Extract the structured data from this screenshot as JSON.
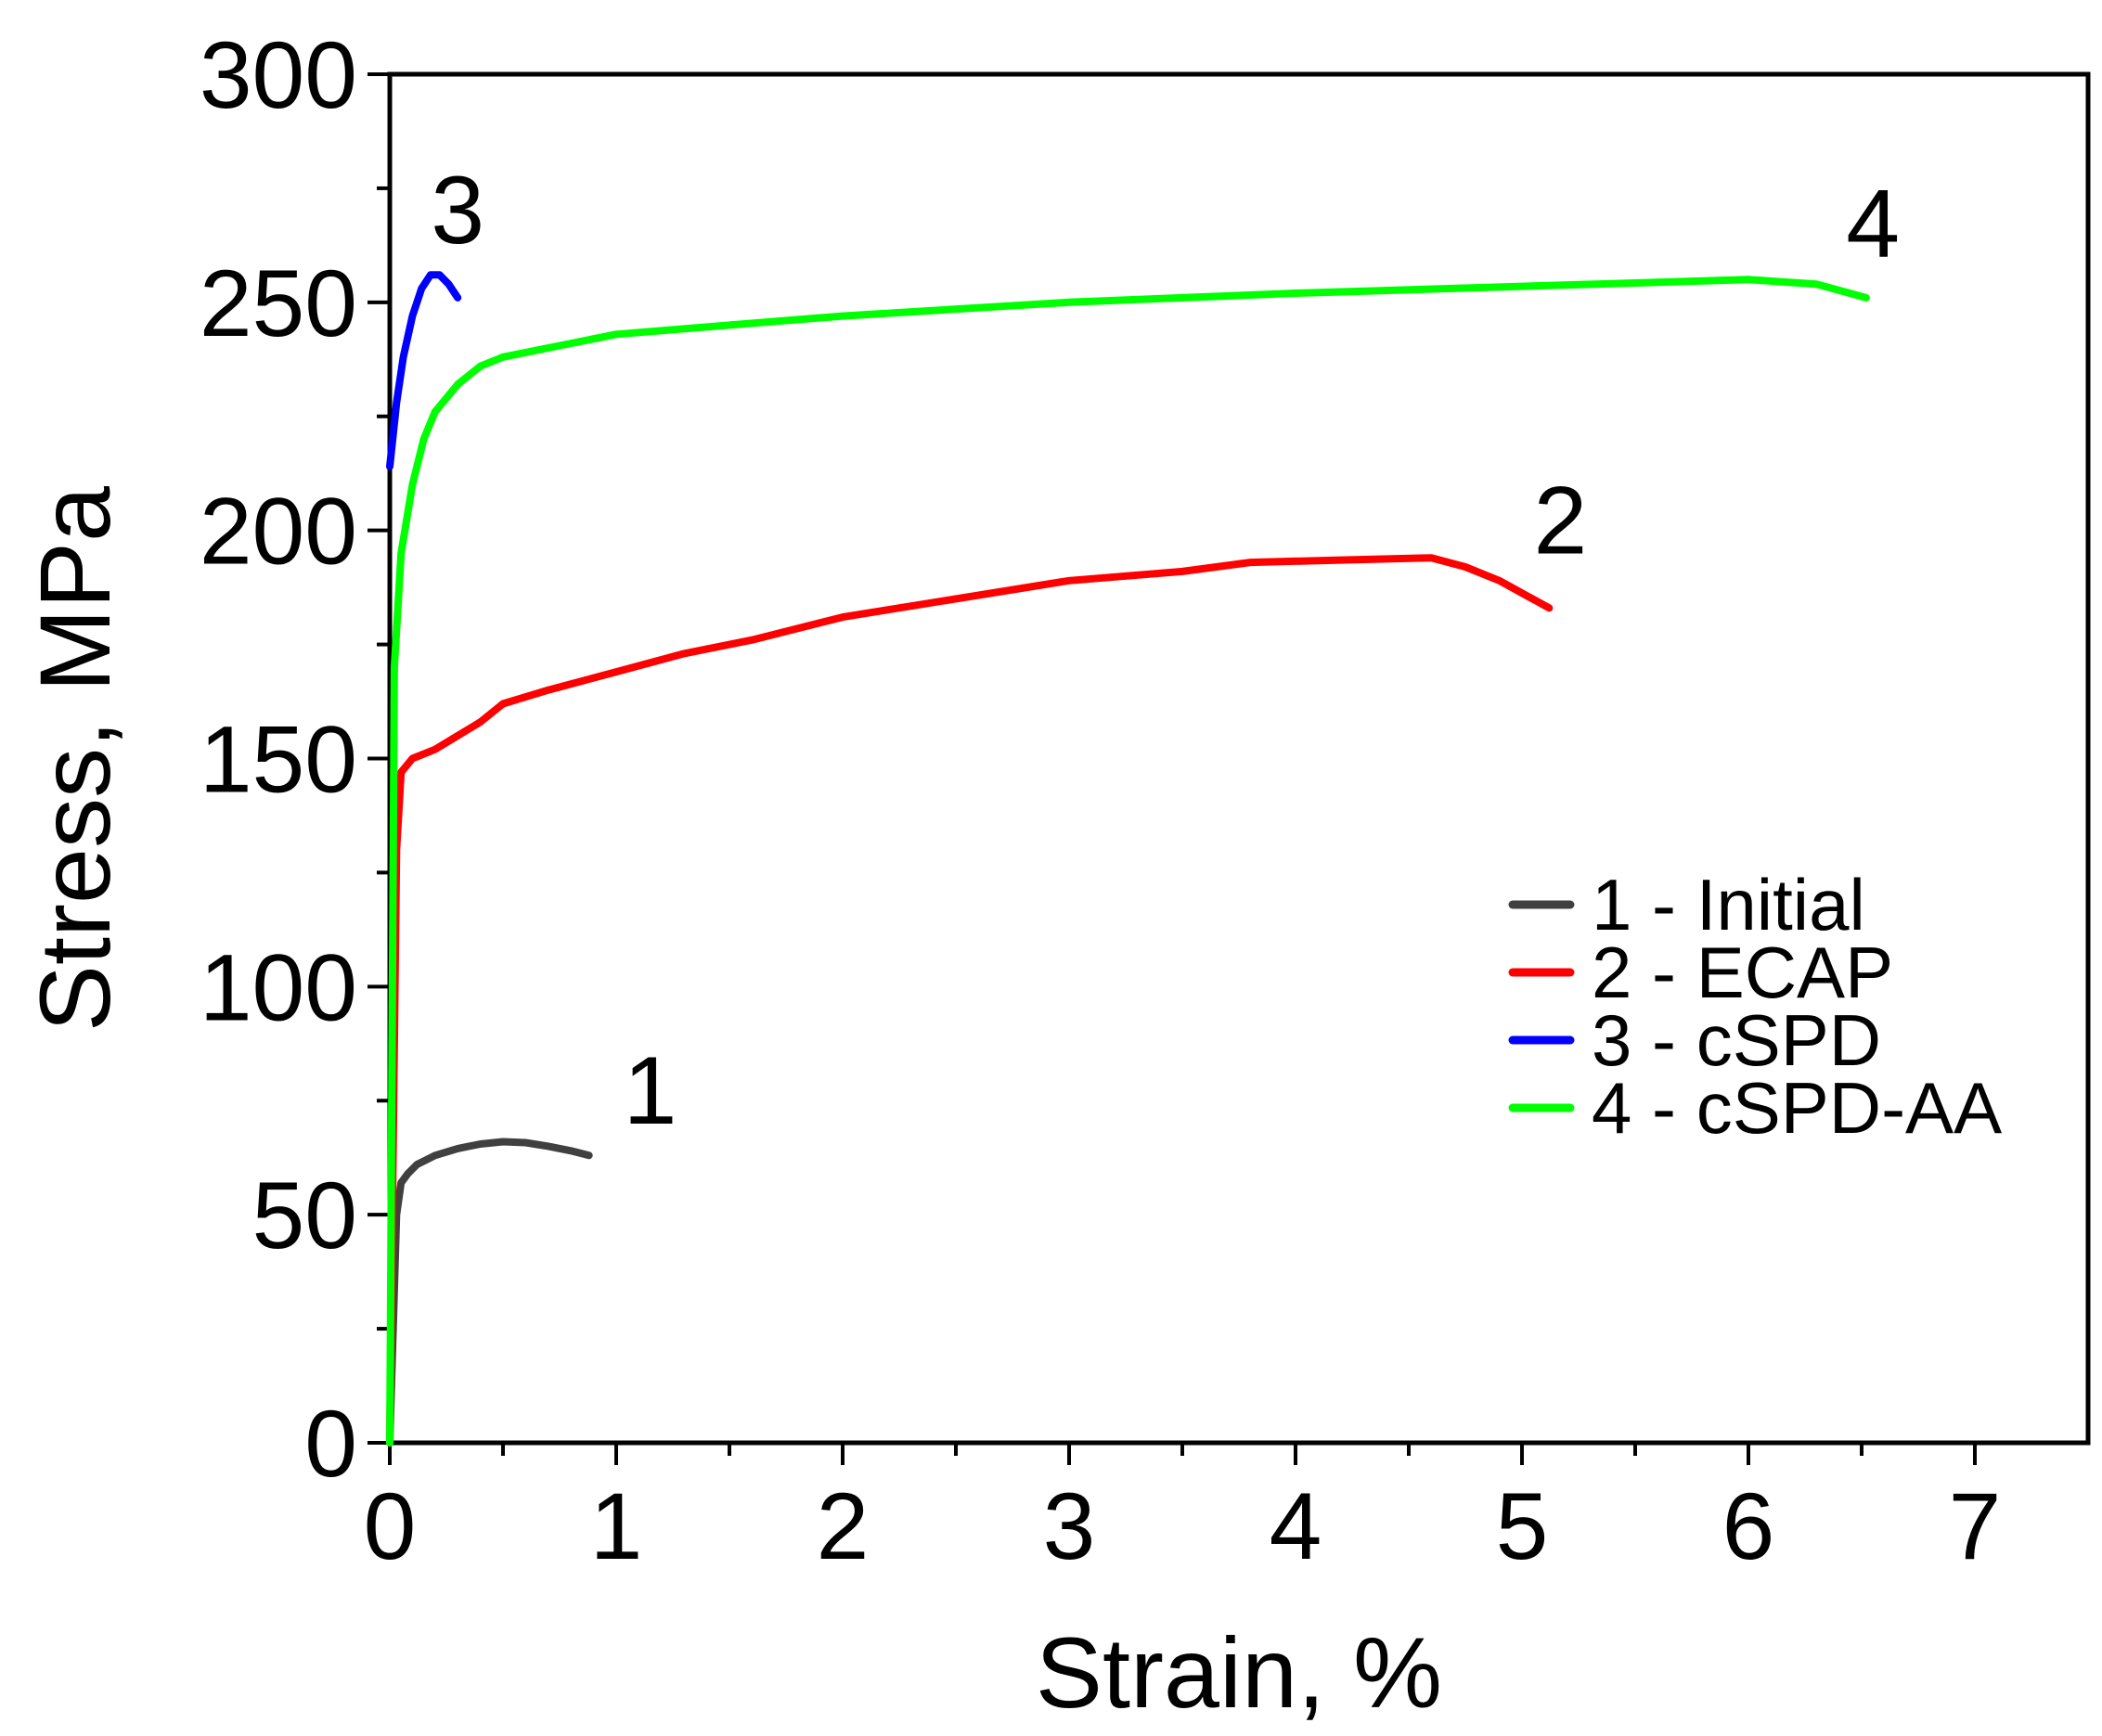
{
  "chart_data": {
    "type": "line",
    "title": "",
    "xlabel": "Strain, %",
    "ylabel": "Stress, MPa",
    "xlim": [
      0,
      7.5
    ],
    "ylim": [
      0,
      300
    ],
    "xticks": [
      0,
      1,
      2,
      3,
      4,
      5,
      6,
      7
    ],
    "yticks": [
      0,
      50,
      100,
      150,
      200,
      250,
      300
    ],
    "grid": false,
    "legend_position": "lower-right",
    "series": [
      {
        "name": "1 - Initial",
        "curve_label": "1",
        "color": "#404040",
        "points": [
          [
            0,
            0
          ],
          [
            0.03,
            50
          ],
          [
            0.05,
            57
          ],
          [
            0.08,
            59
          ],
          [
            0.12,
            61
          ],
          [
            0.2,
            63
          ],
          [
            0.3,
            64.5
          ],
          [
            0.4,
            65.5
          ],
          [
            0.5,
            66
          ],
          [
            0.6,
            65.8
          ],
          [
            0.7,
            65
          ],
          [
            0.8,
            64
          ],
          [
            0.88,
            63
          ]
        ]
      },
      {
        "name": "2 - ECAP",
        "curve_label": "2",
        "color": "#ff0000",
        "points": [
          [
            0,
            0
          ],
          [
            0.03,
            130
          ],
          [
            0.05,
            147
          ],
          [
            0.1,
            150
          ],
          [
            0.2,
            152
          ],
          [
            0.3,
            155
          ],
          [
            0.4,
            158
          ],
          [
            0.5,
            162
          ],
          [
            0.7,
            165
          ],
          [
            1.0,
            169
          ],
          [
            1.3,
            173
          ],
          [
            1.6,
            176
          ],
          [
            2.0,
            181
          ],
          [
            2.5,
            185
          ],
          [
            3.0,
            189
          ],
          [
            3.5,
            191
          ],
          [
            3.8,
            193
          ],
          [
            4.2,
            193.5
          ],
          [
            4.6,
            194
          ],
          [
            4.75,
            192
          ],
          [
            4.9,
            189
          ],
          [
            5.12,
            183
          ]
        ]
      },
      {
        "name": "3 - cSPD",
        "curve_label": "3",
        "color": "#0000ff",
        "points": [
          [
            0,
            214
          ],
          [
            0.03,
            228
          ],
          [
            0.06,
            238
          ],
          [
            0.1,
            247
          ],
          [
            0.14,
            253
          ],
          [
            0.18,
            256
          ],
          [
            0.22,
            256
          ],
          [
            0.26,
            254
          ],
          [
            0.3,
            251
          ]
        ]
      },
      {
        "name": "4 - cSPD-AA",
        "curve_label": "4",
        "color": "#00ff00",
        "points": [
          [
            0,
            0
          ],
          [
            0.02,
            170
          ],
          [
            0.05,
            195
          ],
          [
            0.1,
            210
          ],
          [
            0.15,
            220
          ],
          [
            0.2,
            226
          ],
          [
            0.3,
            232
          ],
          [
            0.4,
            236
          ],
          [
            0.5,
            238
          ],
          [
            0.7,
            240
          ],
          [
            1.0,
            243
          ],
          [
            1.5,
            245
          ],
          [
            2.0,
            247
          ],
          [
            3.0,
            250
          ],
          [
            4.0,
            252
          ],
          [
            5.0,
            253.5
          ],
          [
            6.0,
            255
          ],
          [
            6.3,
            254
          ],
          [
            6.52,
            251
          ]
        ]
      }
    ],
    "annotations": [
      {
        "text": "1",
        "x": 1.15,
        "y": 70
      },
      {
        "text": "2",
        "x": 5.17,
        "y": 195
      },
      {
        "text": "3",
        "x": 0.3,
        "y": 263
      },
      {
        "text": "4",
        "x": 6.55,
        "y": 260
      }
    ]
  }
}
